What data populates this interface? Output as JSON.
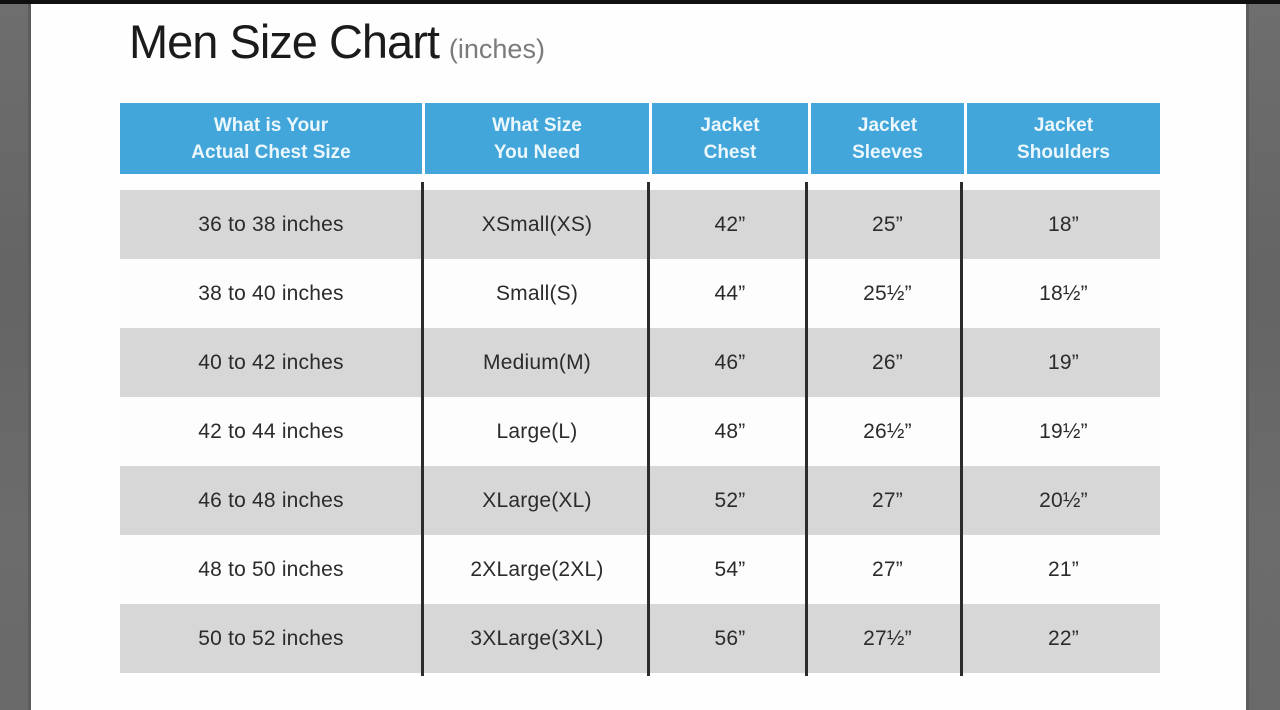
{
  "title": {
    "main": "Men Size Chart",
    "sub": "(inches)"
  },
  "table": {
    "headers": [
      "What is Your\nActual Chest Size",
      "What Size\nYou Need",
      "Jacket\nChest",
      "Jacket\nSleeves",
      "Jacket\nShoulders"
    ],
    "rows": [
      [
        "36 to 38 inches",
        "XSmall(XS)",
        "42”",
        "25”",
        "18”"
      ],
      [
        "38 to 40 inches",
        "Small(S)",
        "44”",
        "25½”",
        "18½”"
      ],
      [
        "40 to 42 inches",
        "Medium(M)",
        "46”",
        "26”",
        "19”"
      ],
      [
        "42 to 44 inches",
        "Large(L)",
        "48”",
        "26½”",
        "19½”"
      ],
      [
        "46 to 48 inches",
        "XLarge(XL)",
        "52”",
        "27”",
        "20½”"
      ],
      [
        "48 to 50 inches",
        "2XLarge(2XL)",
        "54”",
        "27”",
        "21”"
      ],
      [
        "50 to 52 inches",
        "3XLarge(3XL)",
        "56”",
        "27½”",
        "22”"
      ]
    ]
  },
  "colors": {
    "header_blue": "#42a6da",
    "header_text": "#ecf7fd",
    "row_gray": "#d7d7d8",
    "cell_text": "#2b2b2b",
    "line_dark": "#2c2c2c",
    "title_black": "#1b1b1b",
    "subtitle_gray": "#7b7b7b",
    "pillar_gray": "#696969"
  },
  "chart_data": {
    "type": "table",
    "title": "Men Size Chart (inches)",
    "columns": [
      "What is Your Actual Chest Size",
      "What Size You Need",
      "Jacket Chest",
      "Jacket Sleeves",
      "Jacket Shoulders"
    ],
    "rows": [
      [
        "36 to 38 inches",
        "XSmall(XS)",
        "42”",
        "25”",
        "18”"
      ],
      [
        "38 to 40 inches",
        "Small(S)",
        "44”",
        "25½”",
        "18½”"
      ],
      [
        "40 to 42 inches",
        "Medium(M)",
        "46”",
        "26”",
        "19”"
      ],
      [
        "42 to 44 inches",
        "Large(L)",
        "48”",
        "26½”",
        "19½”"
      ],
      [
        "46 to 48 inches",
        "XLarge(XL)",
        "52”",
        "27”",
        "20½”"
      ],
      [
        "48 to 50 inches",
        "2XLarge(2XL)",
        "54”",
        "27”",
        "21”"
      ],
      [
        "50 to 52 inches",
        "3XLarge(3XL)",
        "56”",
        "27½”",
        "22”"
      ]
    ],
    "layout": {
      "header_fill": "#42a6da",
      "row_stripe_fill": "#d7d7d8",
      "unit": "inches"
    }
  }
}
